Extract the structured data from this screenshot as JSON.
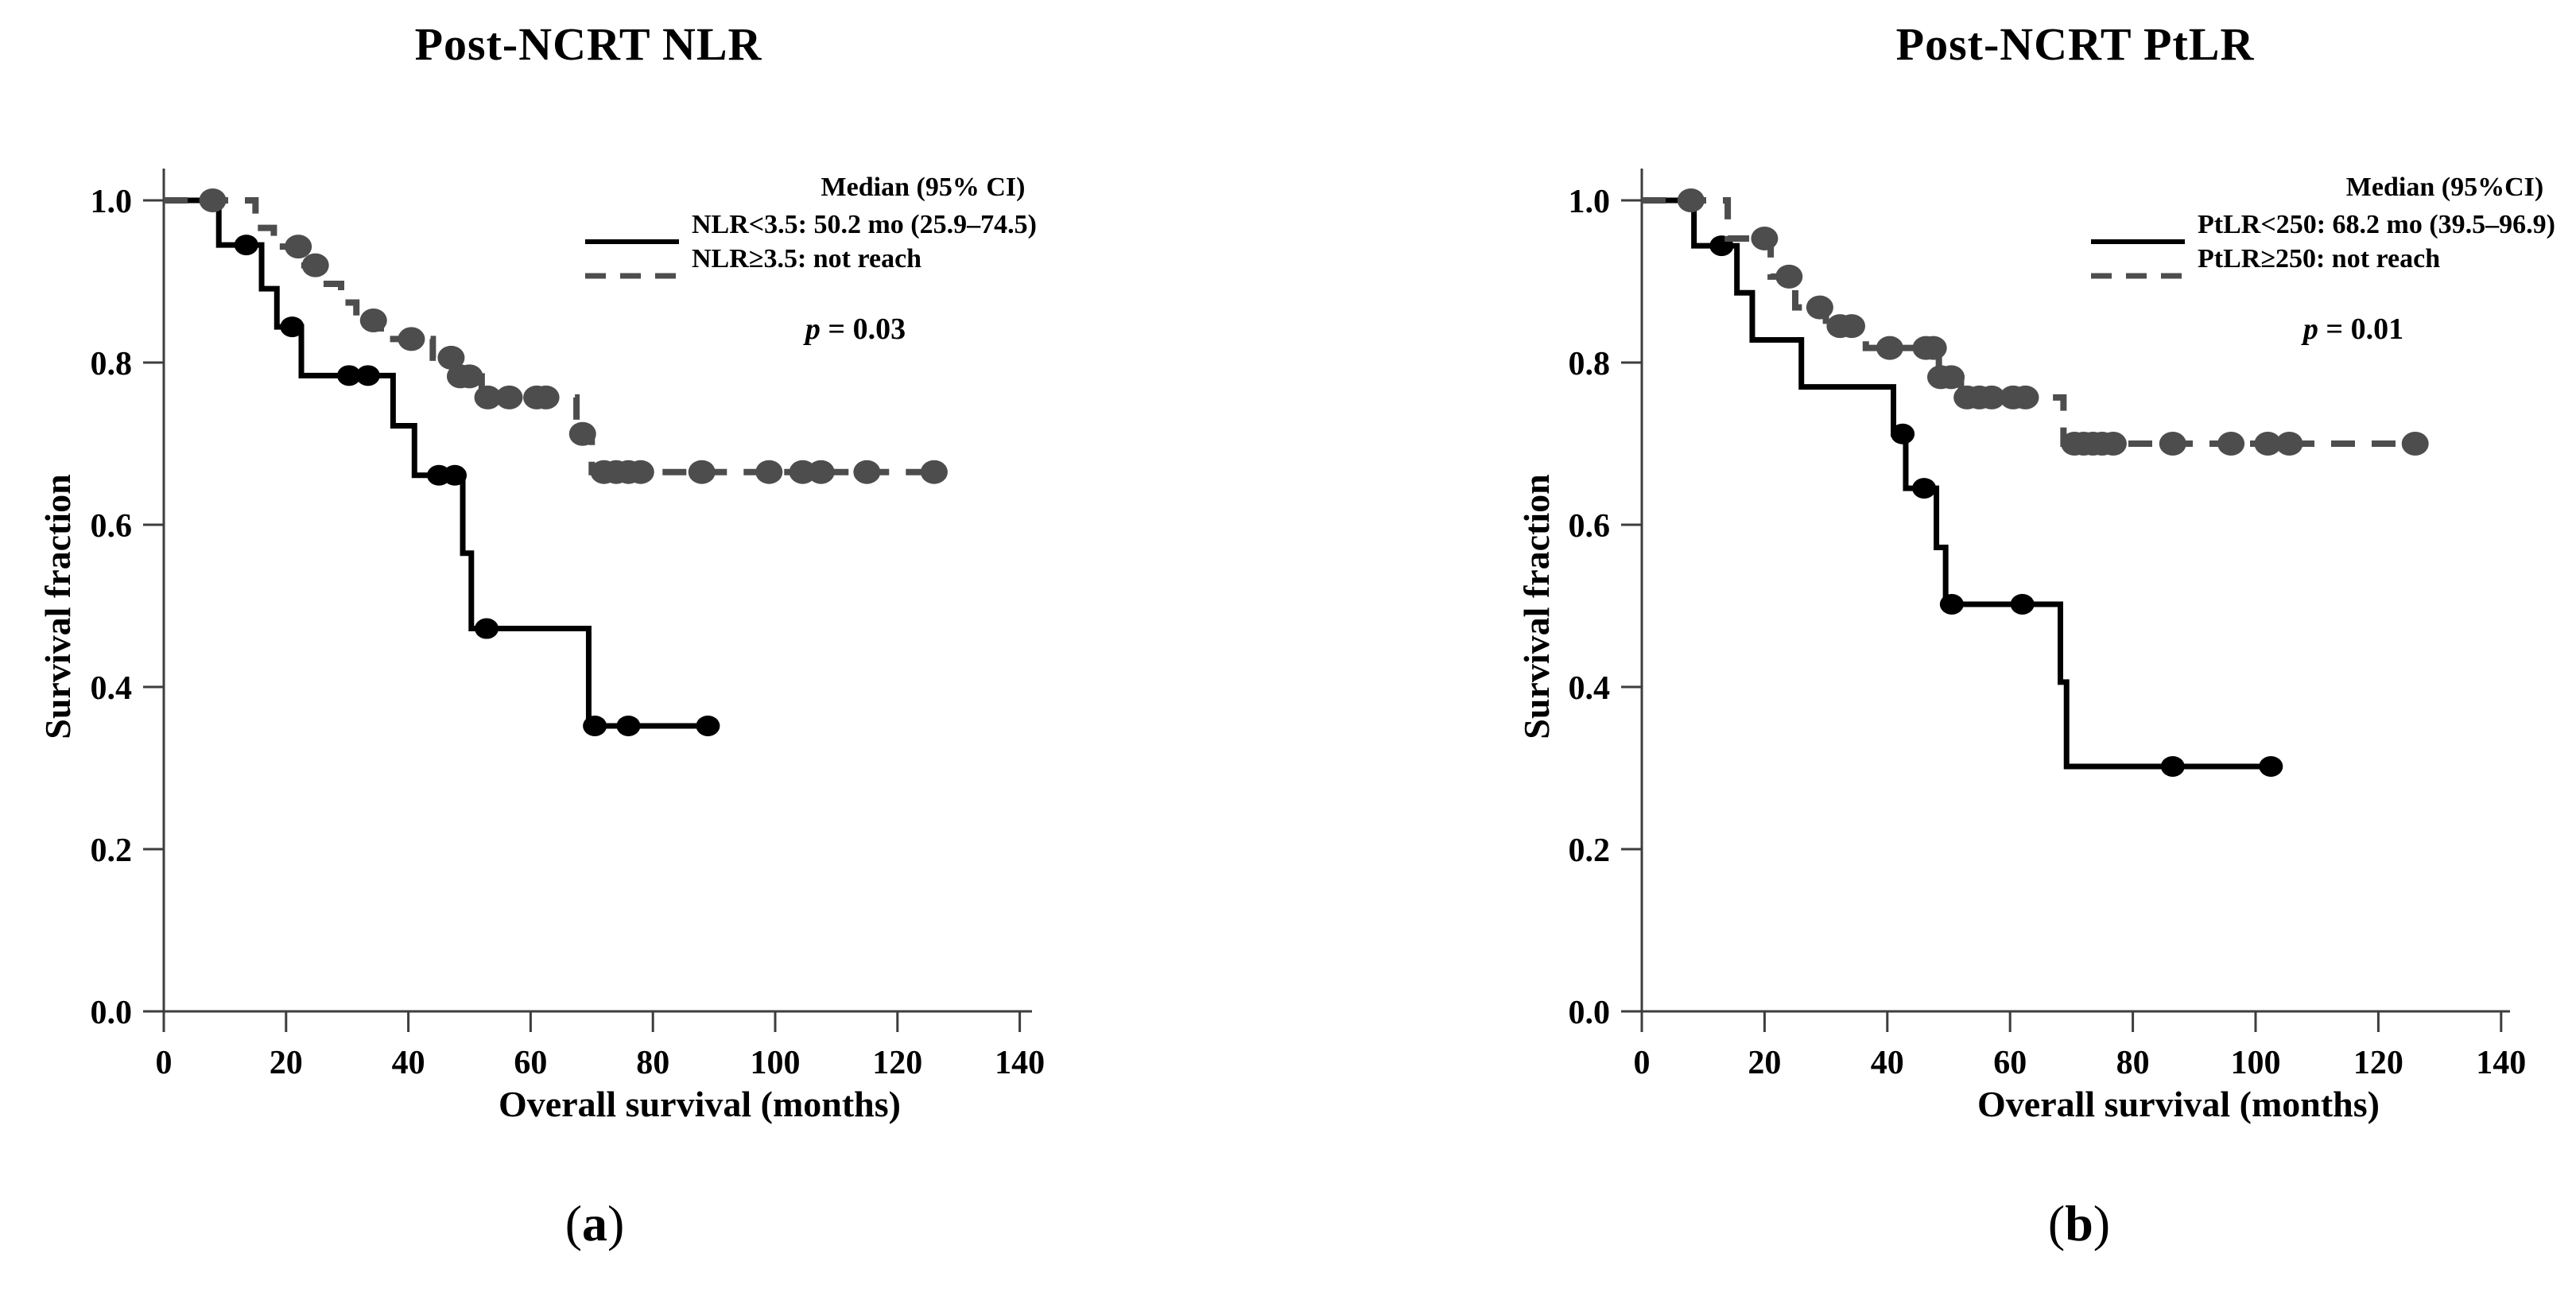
{
  "figure": {
    "letters": [
      {
        "open": "(",
        "letter": "a",
        "close": ")"
      },
      {
        "open": "(",
        "letter": "b",
        "close": ")"
      }
    ]
  },
  "chart_data": [
    {
      "id": "a",
      "type": "line",
      "subtype": "kaplan-meier-step",
      "title": "Post-NCRT NLR",
      "xlabel": "Overall survival (months)",
      "ylabel": "Survival fraction",
      "xlim": [
        0,
        140
      ],
      "ylim": [
        0.0,
        1.0
      ],
      "grid": false,
      "legend_position": "top-right-inside",
      "legend_header": "Median (95% CI)",
      "pval": {
        "sym": "p",
        "rest": " = 0.03"
      },
      "x_ticks": [
        {
          "v": 0,
          "label": "0"
        },
        {
          "v": 20,
          "label": "20"
        },
        {
          "v": 40,
          "label": "40"
        },
        {
          "v": 60,
          "label": "60"
        },
        {
          "v": 80,
          "label": "80"
        },
        {
          "v": 100,
          "label": "100"
        },
        {
          "v": 120,
          "label": "120"
        },
        {
          "v": 140,
          "label": "140"
        }
      ],
      "y_ticks": [
        {
          "v": 1.0,
          "label": "1.0"
        },
        {
          "v": 0.8,
          "label": "0.8"
        },
        {
          "v": 0.6,
          "label": "0.6"
        },
        {
          "v": 0.4,
          "label": "0.4"
        },
        {
          "v": 0.2,
          "label": "0.2"
        },
        {
          "v": 0.0,
          "label": "0.0"
        }
      ],
      "series": [
        {
          "name": "NLR<3.5: 50.2 mo (25.9–74.5)",
          "line": "solid",
          "color": "#000000",
          "steps": [
            [
              0,
              1.0
            ],
            [
              9,
              0.945
            ],
            [
              16,
              0.891
            ],
            [
              18.5,
              0.844
            ],
            [
              22.5,
              0.784
            ],
            [
              37.5,
              0.722
            ],
            [
              41,
              0.661
            ],
            [
              48.9,
              0.565
            ],
            [
              50.3,
              0.472
            ],
            [
              69.5,
              0.352
            ]
          ],
          "end": 89,
          "censors": [
            [
              13.5,
              0.945
            ],
            [
              21,
              0.844
            ],
            [
              30.3,
              0.784
            ],
            [
              33.4,
              0.784
            ],
            [
              45,
              0.661
            ],
            [
              47.6,
              0.661
            ],
            [
              52.8,
              0.472
            ],
            [
              70.5,
              0.352
            ],
            [
              76,
              0.352
            ],
            [
              89,
              0.352
            ]
          ]
        },
        {
          "name": "NLR≥3.5: not reach",
          "line": "dashed",
          "color": "#4d4d4d",
          "steps": [
            [
              0,
              1.0
            ],
            [
              15,
              0.966
            ],
            [
              18,
              0.943
            ],
            [
              23,
              0.92
            ],
            [
              26,
              0.897
            ],
            [
              29,
              0.874
            ],
            [
              31.5,
              0.852
            ],
            [
              35.5,
              0.829
            ],
            [
              44,
              0.806
            ],
            [
              47.5,
              0.783
            ],
            [
              52,
              0.757
            ],
            [
              67.5,
              0.712
            ],
            [
              70,
              0.665
            ]
          ],
          "end": 128,
          "censors": [
            [
              8,
              1.0
            ],
            [
              22,
              0.943
            ],
            [
              24.8,
              0.92
            ],
            [
              34.3,
              0.852
            ],
            [
              40.5,
              0.829
            ],
            [
              47,
              0.806
            ],
            [
              48.5,
              0.783
            ],
            [
              50,
              0.783
            ],
            [
              53,
              0.757
            ],
            [
              56.5,
              0.757
            ],
            [
              61,
              0.757
            ],
            [
              62.5,
              0.757
            ],
            [
              68.5,
              0.712
            ],
            [
              72,
              0.665
            ],
            [
              74,
              0.665
            ],
            [
              76,
              0.665
            ],
            [
              78,
              0.665
            ],
            [
              88,
              0.665
            ],
            [
              99,
              0.665
            ],
            [
              104.5,
              0.665
            ],
            [
              107.5,
              0.665
            ],
            [
              115,
              0.665
            ],
            [
              126,
              0.665
            ]
          ]
        }
      ]
    },
    {
      "id": "b",
      "type": "line",
      "subtype": "kaplan-meier-step",
      "title": "Post-NCRT PtLR",
      "xlabel": "Overall survival (months)",
      "ylabel": "Survival fraction",
      "xlim": [
        0,
        140
      ],
      "ylim": [
        0.0,
        1.0
      ],
      "grid": false,
      "legend_position": "top-right-inside",
      "legend_header": "Median (95%CI)",
      "pval": {
        "sym": "p",
        "rest": " = 0.01"
      },
      "x_ticks": [
        {
          "v": 0,
          "label": "0"
        },
        {
          "v": 20,
          "label": "20"
        },
        {
          "v": 40,
          "label": "40"
        },
        {
          "v": 60,
          "label": "60"
        },
        {
          "v": 80,
          "label": "80"
        },
        {
          "v": 100,
          "label": "100"
        },
        {
          "v": 120,
          "label": "120"
        },
        {
          "v": 140,
          "label": "140"
        }
      ],
      "y_ticks": [
        {
          "v": 1.0,
          "label": "1.0"
        },
        {
          "v": 0.8,
          "label": "0.8"
        },
        {
          "v": 0.6,
          "label": "0.6"
        },
        {
          "v": 0.4,
          "label": "0.4"
        },
        {
          "v": 0.2,
          "label": "0.2"
        },
        {
          "v": 0.0,
          "label": "0.0"
        }
      ],
      "series": [
        {
          "name": "PtLR<250: 68.2 mo (39.5–96.9)",
          "line": "solid",
          "color": "#000000",
          "steps": [
            [
              0,
              1.0
            ],
            [
              8.5,
              0.944
            ],
            [
              15.5,
              0.886
            ],
            [
              18,
              0.828
            ],
            [
              26,
              0.77
            ],
            [
              41,
              0.712
            ],
            [
              43,
              0.645
            ],
            [
              48,
              0.572
            ],
            [
              49.5,
              0.502
            ],
            [
              68.2,
              0.406
            ],
            [
              69.2,
              0.302
            ]
          ],
          "end": 103,
          "censors": [
            [
              13,
              0.944
            ],
            [
              42.5,
              0.712
            ],
            [
              46,
              0.645
            ],
            [
              50.5,
              0.502
            ],
            [
              62,
              0.502
            ],
            [
              86.5,
              0.302
            ],
            [
              102.5,
              0.302
            ]
          ]
        },
        {
          "name": "PtLR≥250: not reach",
          "line": "dashed",
          "color": "#4d4d4d",
          "steps": [
            [
              0,
              1.0
            ],
            [
              14,
              0.953
            ],
            [
              21,
              0.906
            ],
            [
              25,
              0.868
            ],
            [
              30,
              0.845
            ],
            [
              36.5,
              0.818
            ],
            [
              48.4,
              0.782
            ],
            [
              52,
              0.757
            ],
            [
              68.7,
              0.7
            ]
          ],
          "end": 127.5,
          "censors": [
            [
              8,
              1.0
            ],
            [
              20,
              0.953
            ],
            [
              24,
              0.906
            ],
            [
              29,
              0.868
            ],
            [
              32.3,
              0.845
            ],
            [
              34.2,
              0.845
            ],
            [
              40.4,
              0.818
            ],
            [
              46.3,
              0.818
            ],
            [
              47.5,
              0.818
            ],
            [
              48.7,
              0.782
            ],
            [
              50.4,
              0.782
            ],
            [
              53,
              0.757
            ],
            [
              55,
              0.757
            ],
            [
              57,
              0.757
            ],
            [
              60.5,
              0.757
            ],
            [
              62.5,
              0.757
            ],
            [
              70.5,
              0.7
            ],
            [
              72,
              0.7
            ],
            [
              73.5,
              0.7
            ],
            [
              75,
              0.7
            ],
            [
              76.8,
              0.7
            ],
            [
              86.5,
              0.7
            ],
            [
              96,
              0.7
            ],
            [
              102,
              0.7
            ],
            [
              105.5,
              0.7
            ],
            [
              126,
              0.7
            ]
          ]
        }
      ]
    }
  ]
}
